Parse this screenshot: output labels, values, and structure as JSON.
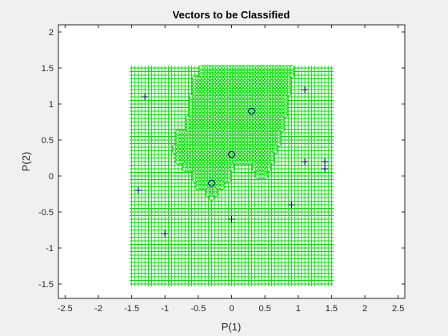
{
  "chart_data": {
    "type": "scatter",
    "title": "Vectors to be Classified",
    "xlabel": "P(1)",
    "ylabel": "P(2)",
    "xlim": [
      -2.6,
      2.6
    ],
    "ylim": [
      -1.7,
      2.1
    ],
    "xticks": [
      -2.5,
      -2,
      -1.5,
      -1,
      -0.5,
      0,
      0.5,
      1,
      1.5,
      2,
      2.5
    ],
    "yticks": [
      -1.5,
      -1,
      -0.5,
      0,
      0.5,
      1,
      1.5,
      2
    ],
    "xtick_labels": [
      "-2.5",
      "-2",
      "-1.5",
      "-1",
      "-0.5",
      "0",
      "0.5",
      "1",
      "1.5",
      "2",
      "2.5"
    ],
    "ytick_labels": [
      "-1.5",
      "-1",
      "-0.5",
      "0",
      "0.5",
      "1",
      "1.5",
      "2"
    ],
    "grid": false,
    "legend": "none",
    "colors": {
      "class_1_region": "#00dd00",
      "class_0_region": "#00dd00",
      "vectors": "#000080",
      "axes_background": "#ffffff",
      "axis": "#262626"
    },
    "decision_grid": {
      "x_range": [
        -1.5,
        1.5
      ],
      "y_range": [
        -1.5,
        1.5
      ],
      "step": 0.05,
      "class_1_marker": "plus",
      "class_0_marker": "circle",
      "class_0_region_bands": [
        {
          "y_min": 1.4,
          "y_max": 1.5,
          "x_min": -0.45,
          "x_max": 0.9
        },
        {
          "y_min": 1.15,
          "y_max": 1.35,
          "x_min": -0.55,
          "x_max": 0.85
        },
        {
          "y_min": 0.85,
          "y_max": 1.1,
          "x_min": -0.6,
          "x_max": 0.8
        },
        {
          "y_min": 0.65,
          "y_max": 0.8,
          "x_min": -0.65,
          "x_max": 0.75
        },
        {
          "y_min": 0.45,
          "y_max": 0.6,
          "x_min": -0.8,
          "x_max": 0.7
        },
        {
          "y_min": 0.35,
          "y_max": 0.4,
          "x_min": -0.85,
          "x_max": 0.65
        },
        {
          "y_min": 0.2,
          "y_max": 0.3,
          "x_min": -0.8,
          "x_max": 0.6
        },
        {
          "y_min": 0.1,
          "y_max": 0.15,
          "x_min": -0.7,
          "x_max": 0.0
        },
        {
          "y_min": 0.1,
          "y_max": 0.15,
          "x_min": 0.35,
          "x_max": 0.55
        },
        {
          "y_min": 0.0,
          "y_max": 0.05,
          "x_min": 0.4,
          "x_max": 0.5
        },
        {
          "y_min": -0.05,
          "y_max": 0.05,
          "x_min": -0.55,
          "x_max": -0.05
        },
        {
          "y_min": -0.15,
          "y_max": -0.1,
          "x_min": -0.5,
          "x_max": -0.15
        },
        {
          "y_min": -0.25,
          "y_max": -0.2,
          "x_min": -0.35,
          "x_max": -0.25
        },
        {
          "y_min": -0.3,
          "y_max": -0.3,
          "x_min": -0.3,
          "x_max": -0.3
        }
      ]
    },
    "series": [
      {
        "marker": "plus",
        "x": [
          -1.3,
          1.1,
          -1.4,
          1.1,
          1.4,
          1.4,
          0.0,
          0.9,
          -1.0
        ],
        "y": [
          1.1,
          1.2,
          -0.2,
          0.2,
          0.1,
          0.2,
          -0.6,
          -0.4,
          -0.8
        ]
      },
      {
        "marker": "circle",
        "x": [
          0.3,
          0.0,
          -0.3
        ],
        "y": [
          0.9,
          0.3,
          -0.1
        ]
      }
    ]
  }
}
